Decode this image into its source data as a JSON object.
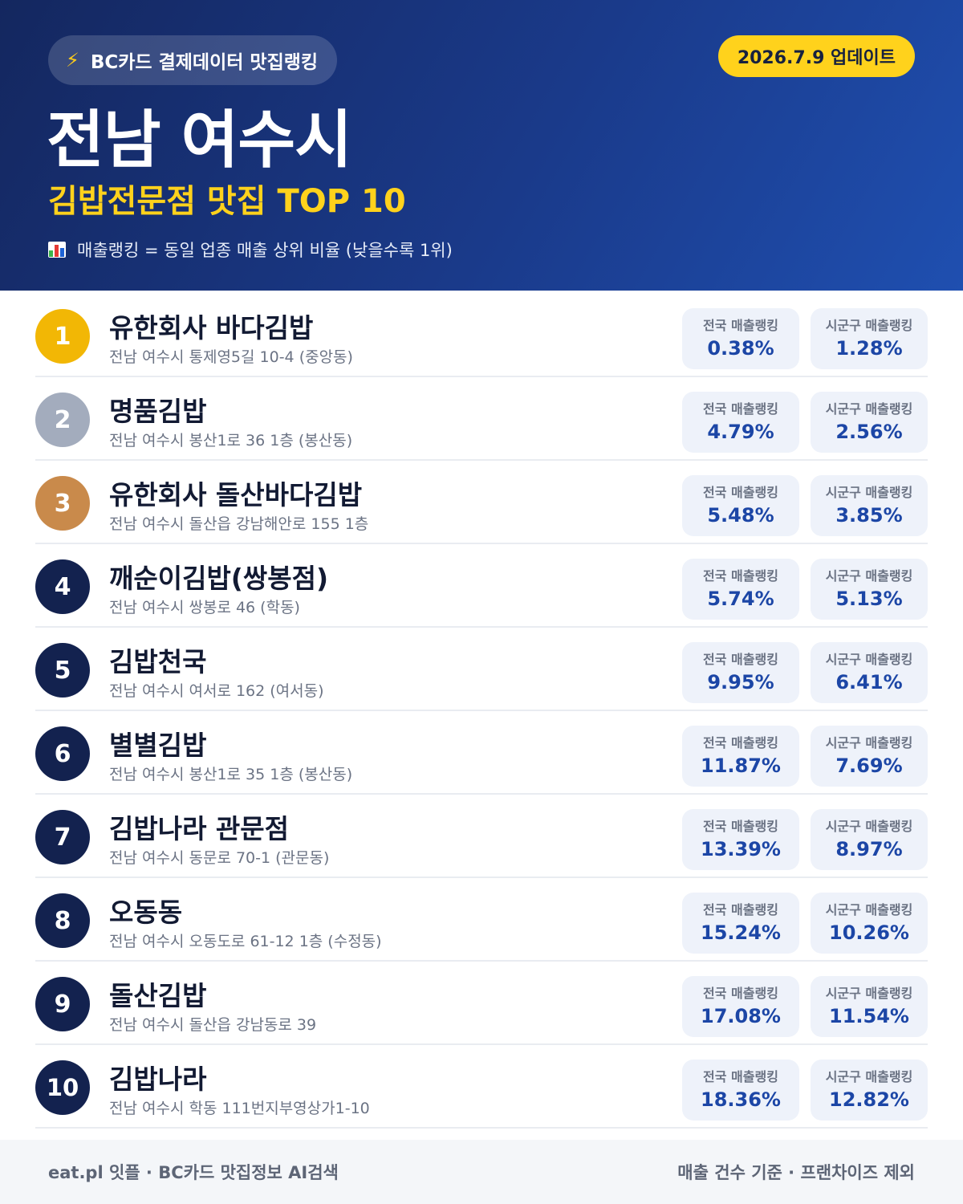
{
  "header": {
    "source_icon": "lightning-bolt-icon",
    "source_label": "BC카드 결제데이터 맛집랭킹",
    "update_label": "2026.7.9 업데이트",
    "title": "전남 여수시",
    "subtitle": "김밥전문점 맛집 TOP 10",
    "legend_icon": "bar-chart-icon",
    "legend_text": "매출랭킹 = 동일 업종 매출 상위 비율 (낮을수록 1위)"
  },
  "labels": {
    "national": "전국 매출랭킹",
    "local": "시군구 매출랭킹"
  },
  "colors": {
    "header_bg": "#1a3a8a",
    "accent_yellow": "#ffd21c",
    "rank1": "#f2b705",
    "rank2": "#a3acbd",
    "rank3": "#c98a4b",
    "rank_default": "#13224f",
    "value_blue": "#1c46a6"
  },
  "restaurants": [
    {
      "rank": "1",
      "name": "유한회사 바다김밥",
      "address": "전남 여수시 통제영5길 10-4 (중앙동)",
      "national": "0.38%",
      "local": "1.28%"
    },
    {
      "rank": "2",
      "name": "명품김밥",
      "address": "전남 여수시 봉산1로 36 1층 (봉산동)",
      "national": "4.79%",
      "local": "2.56%"
    },
    {
      "rank": "3",
      "name": "유한회사 돌산바다김밥",
      "address": "전남 여수시 돌산읍 강남해안로 155 1층",
      "national": "5.48%",
      "local": "3.85%"
    },
    {
      "rank": "4",
      "name": "깨순이김밥(쌍봉점)",
      "address": "전남 여수시 쌍봉로 46 (학동)",
      "national": "5.74%",
      "local": "5.13%"
    },
    {
      "rank": "5",
      "name": "김밥천국",
      "address": "전남 여수시 여서로 162 (여서동)",
      "national": "9.95%",
      "local": "6.41%"
    },
    {
      "rank": "6",
      "name": "별별김밥",
      "address": "전남 여수시 봉산1로 35 1층 (봉산동)",
      "national": "11.87%",
      "local": "7.69%"
    },
    {
      "rank": "7",
      "name": "김밥나라 관문점",
      "address": "전남 여수시 동문로 70-1 (관문동)",
      "national": "13.39%",
      "local": "8.97%"
    },
    {
      "rank": "8",
      "name": "오동동",
      "address": "전남 여수시 오동도로 61-12 1층 (수정동)",
      "national": "15.24%",
      "local": "10.26%"
    },
    {
      "rank": "9",
      "name": "돌산김밥",
      "address": "전남 여수시 돌산읍 강남동로 39",
      "national": "17.08%",
      "local": "11.54%"
    },
    {
      "rank": "10",
      "name": "김밥나라",
      "address": "전남 여수시 학동 111번지부영상가1-10",
      "national": "18.36%",
      "local": "12.82%"
    }
  ],
  "footer": {
    "left": "eat.pl 잇플 · BC카드 맛집정보 AI검색",
    "right": "매출 건수 기준 · 프랜차이즈 제외"
  }
}
